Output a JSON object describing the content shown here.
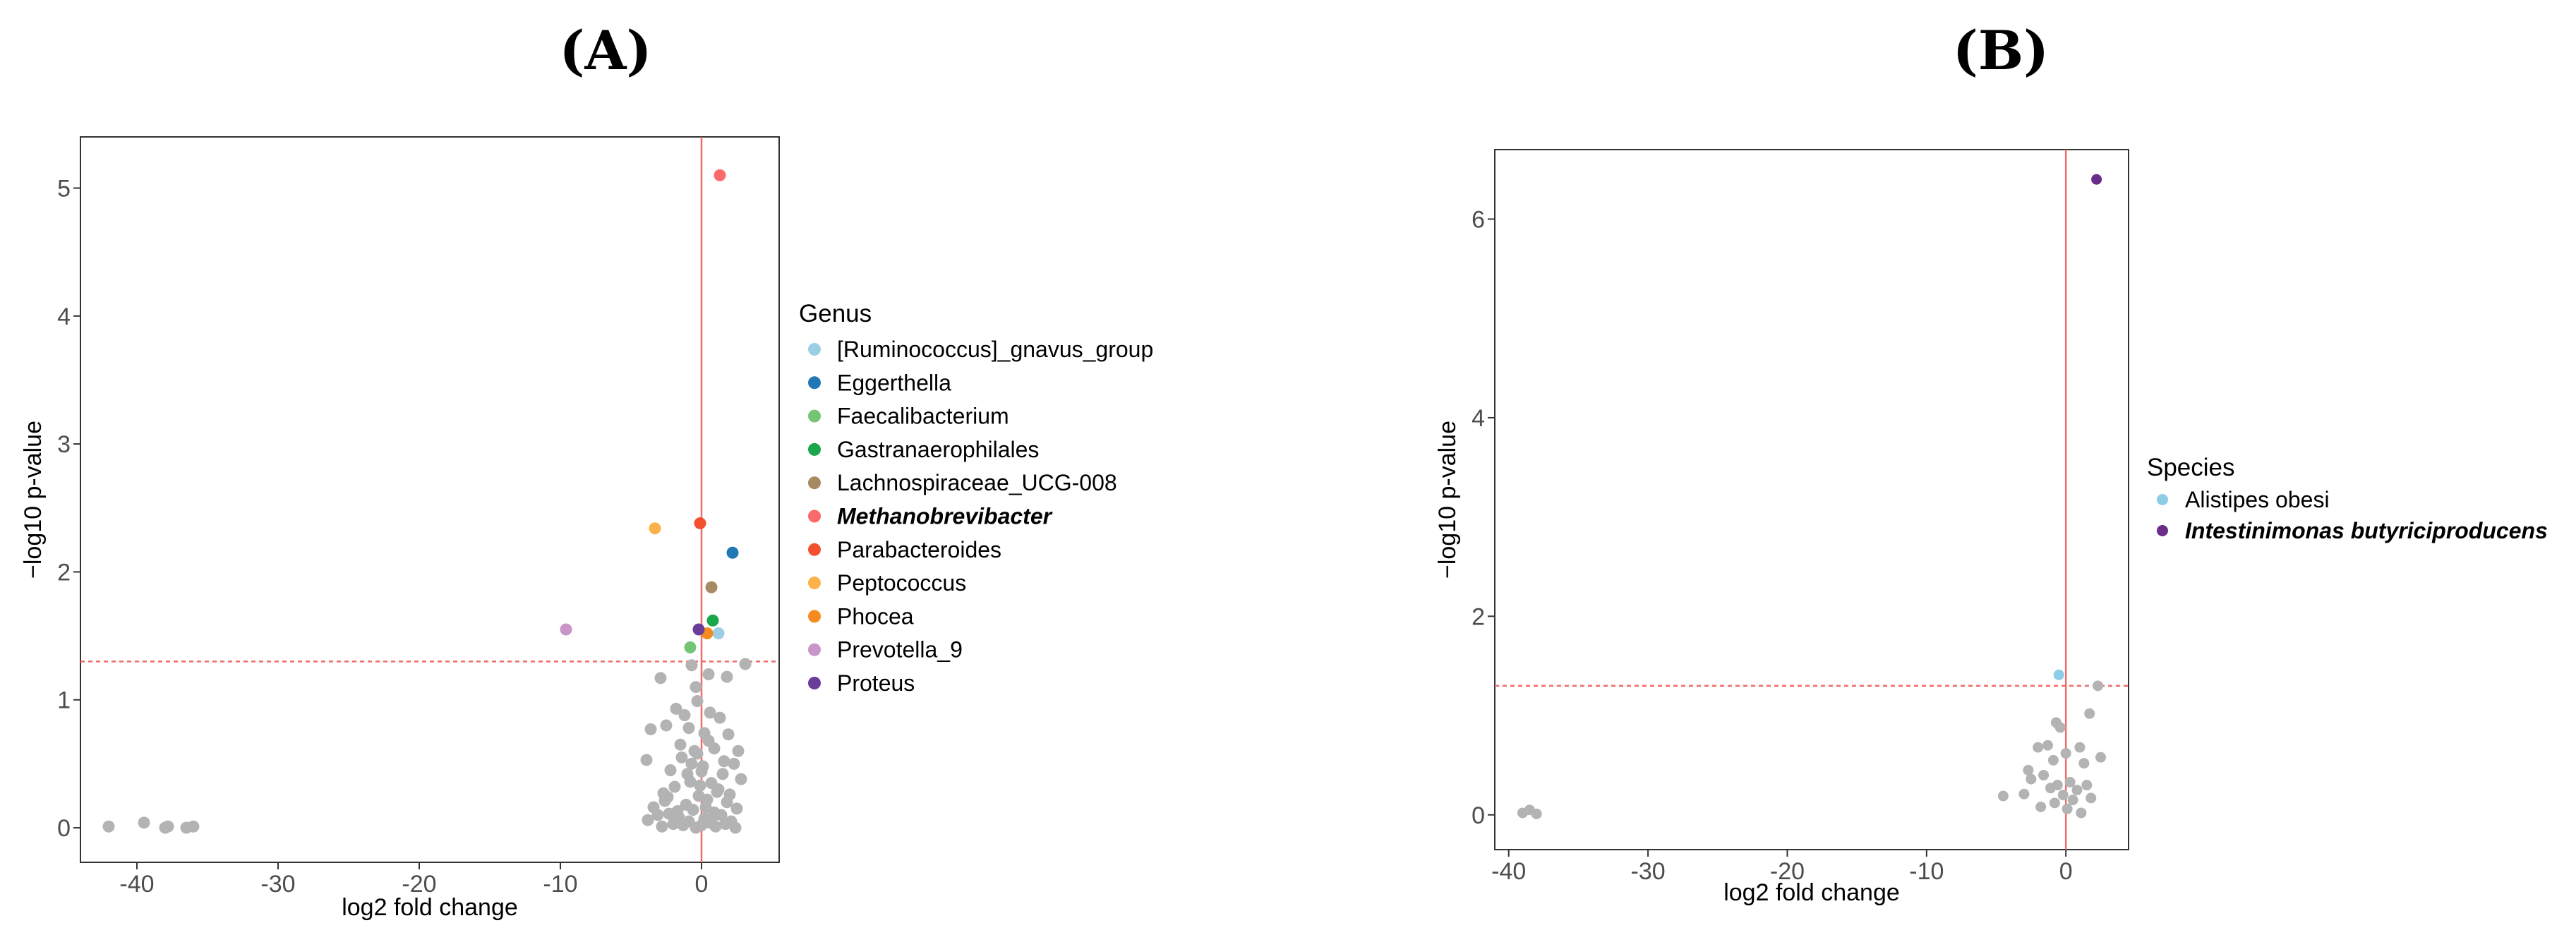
{
  "colors": {
    "nonsignificant": "#b3b3b3",
    "threshold": "#f26a6a",
    "frame": "#333333"
  },
  "chart_data": [
    {
      "panel": "(A)",
      "type": "scatter",
      "xlabel": "log2 fold change",
      "ylabel": "−log10 p-value",
      "xlim": [
        -44,
        5.5
      ],
      "ylim": [
        -0.27,
        5.4
      ],
      "x_ticks": [
        -40,
        -30,
        -20,
        -10,
        0
      ],
      "y_ticks": [
        0,
        1,
        2,
        3,
        4,
        5
      ],
      "grid": false,
      "vline_x": 0,
      "hline_y": 1.3,
      "legend_title": "Genus",
      "legend_position": "right",
      "series": [
        {
          "name": "[Ruminococcus]_gnavus_group",
          "color": "#9ccfe6",
          "emphasis": false,
          "points": [
            [
              1.2,
              1.52
            ]
          ]
        },
        {
          "name": "Eggerthella",
          "color": "#1f78b4",
          "emphasis": false,
          "points": [
            [
              2.2,
              2.15
            ]
          ]
        },
        {
          "name": "Faecalibacterium",
          "color": "#74c476",
          "emphasis": false,
          "points": [
            [
              -0.8,
              1.41
            ]
          ]
        },
        {
          "name": "Gastranaerophilales",
          "color": "#1aa64a",
          "emphasis": false,
          "points": [
            [
              0.8,
              1.62
            ]
          ]
        },
        {
          "name": "Lachnospiraceae_UCG-008",
          "color": "#a88a62",
          "emphasis": false,
          "points": [
            [
              0.7,
              1.88
            ]
          ]
        },
        {
          "name": "Methanobrevibacter",
          "color": "#fb6a6a",
          "emphasis": true,
          "points": [
            [
              1.3,
              5.1
            ]
          ]
        },
        {
          "name": "Parabacteroides",
          "color": "#f2502f",
          "emphasis": false,
          "points": [
            [
              -0.1,
              2.38
            ]
          ]
        },
        {
          "name": "Peptococcus",
          "color": "#fdb249",
          "emphasis": false,
          "points": [
            [
              -3.3,
              2.34
            ]
          ]
        },
        {
          "name": "Phocea",
          "color": "#f58b1f",
          "emphasis": false,
          "points": [
            [
              0.4,
              1.52
            ]
          ]
        },
        {
          "name": "Prevotella_9",
          "color": "#c994c7",
          "emphasis": false,
          "points": [
            [
              -9.6,
              1.55
            ]
          ]
        },
        {
          "name": "Proteus",
          "color": "#6a3d9a",
          "emphasis": false,
          "points": [
            [
              -0.2,
              1.55
            ]
          ]
        }
      ],
      "nonsignificant_points": [
        [
          -42,
          0.01
        ],
        [
          -39.5,
          0.04
        ],
        [
          -38,
          0.0
        ],
        [
          -37.8,
          0.01
        ],
        [
          -36.5,
          0.0
        ],
        [
          -36,
          0.01
        ],
        [
          3.1,
          1.28
        ],
        [
          1.8,
          1.18
        ],
        [
          -2.9,
          1.17
        ],
        [
          -0.4,
          1.1
        ],
        [
          -0.7,
          1.27
        ],
        [
          0.5,
          1.2
        ],
        [
          -1.8,
          0.93
        ],
        [
          -1.2,
          0.88
        ],
        [
          -0.3,
          0.99
        ],
        [
          0.6,
          0.9
        ],
        [
          1.3,
          0.86
        ],
        [
          -2.5,
          0.8
        ],
        [
          -0.9,
          0.78
        ],
        [
          0.2,
          0.74
        ],
        [
          1.9,
          0.73
        ],
        [
          -3.6,
          0.77
        ],
        [
          -0.5,
          0.6
        ],
        [
          0.9,
          0.62
        ],
        [
          2.3,
          0.5
        ],
        [
          -1.4,
          0.55
        ],
        [
          -2.2,
          0.45
        ],
        [
          0.1,
          0.48
        ],
        [
          1.5,
          0.42
        ],
        [
          -3.9,
          0.53
        ],
        [
          -0.8,
          0.36
        ],
        [
          0.7,
          0.35
        ],
        [
          2.8,
          0.38
        ],
        [
          -1.9,
          0.32
        ],
        [
          1.1,
          0.28
        ],
        [
          -2.7,
          0.27
        ],
        [
          -0.2,
          0.25
        ],
        [
          0.4,
          0.22
        ],
        [
          1.8,
          0.2
        ],
        [
          -1.1,
          0.18
        ],
        [
          -3.4,
          0.16
        ],
        [
          2.5,
          0.15
        ],
        [
          -0.6,
          0.14
        ],
        [
          0.9,
          0.12
        ],
        [
          -2.3,
          0.11
        ],
        [
          1.4,
          0.1
        ],
        [
          -1.6,
          0.08
        ],
        [
          0.2,
          0.07
        ],
        [
          -3.8,
          0.06
        ],
        [
          2.1,
          0.05
        ],
        [
          -0.9,
          0.05
        ],
        [
          0.6,
          0.04
        ],
        [
          -2.0,
          0.03
        ],
        [
          1.7,
          0.03
        ],
        [
          -1.3,
          0.02
        ],
        [
          0.0,
          0.02
        ],
        [
          -2.8,
          0.01
        ],
        [
          1.0,
          0.01
        ],
        [
          -0.4,
          0.0
        ],
        [
          2.4,
          0.0
        ],
        [
          -1.7,
          0.13
        ],
        [
          0.3,
          0.16
        ],
        [
          -2.6,
          0.21
        ],
        [
          1.2,
          0.3
        ],
        [
          -0.1,
          0.33
        ],
        [
          2.0,
          0.26
        ],
        [
          -3.1,
          0.1
        ],
        [
          0.8,
          0.09
        ],
        [
          -1.0,
          0.42
        ],
        [
          1.6,
          0.52
        ],
        [
          -0.3,
          0.58
        ],
        [
          0.5,
          0.68
        ],
        [
          -1.5,
          0.65
        ],
        [
          2.6,
          0.6
        ],
        [
          -2.4,
          0.24
        ],
        [
          0.0,
          0.44
        ],
        [
          -0.7,
          0.5
        ]
      ]
    },
    {
      "panel": "(B)",
      "type": "scatter",
      "xlabel": "log2 fold change",
      "ylabel": "−log10 p-value",
      "xlim": [
        -41,
        4.5
      ],
      "ylim": [
        -0.35,
        6.7
      ],
      "x_ticks": [
        -40,
        -30,
        -20,
        -10,
        0
      ],
      "y_ticks": [
        0,
        2,
        4,
        6
      ],
      "grid": false,
      "vline_x": 0,
      "hline_y": 1.3,
      "legend_title": "Species",
      "legend_position": "right",
      "series": [
        {
          "name": "Alistipes obesi",
          "color": "#8ecde6",
          "emphasis": false,
          "points": [
            [
              -0.5,
              1.41
            ]
          ]
        },
        {
          "name": "Intestinimonas butyriciproducens",
          "color": "#6a2d8a",
          "emphasis": true,
          "points": [
            [
              2.2,
              6.4
            ]
          ]
        }
      ],
      "nonsignificant_points": [
        [
          -39,
          0.02
        ],
        [
          -38.5,
          0.05
        ],
        [
          -38,
          0.01
        ],
        [
          2.3,
          1.3
        ],
        [
          1.7,
          1.02
        ],
        [
          -0.7,
          0.93
        ],
        [
          -0.4,
          0.88
        ],
        [
          -1.3,
          0.7
        ],
        [
          -2.0,
          0.68
        ],
        [
          1.0,
          0.68
        ],
        [
          0.0,
          0.62
        ],
        [
          2.5,
          0.58
        ],
        [
          -0.9,
          0.55
        ],
        [
          1.3,
          0.52
        ],
        [
          -2.7,
          0.45
        ],
        [
          -1.6,
          0.4
        ],
        [
          -2.5,
          0.36
        ],
        [
          0.3,
          0.33
        ],
        [
          -0.6,
          0.3
        ],
        [
          1.5,
          0.3
        ],
        [
          -1.1,
          0.27
        ],
        [
          0.8,
          0.25
        ],
        [
          -3.0,
          0.21
        ],
        [
          -4.5,
          0.19
        ],
        [
          -0.2,
          0.2
        ],
        [
          1.8,
          0.17
        ],
        [
          0.5,
          0.15
        ],
        [
          -0.8,
          0.12
        ],
        [
          -1.8,
          0.08
        ],
        [
          0.1,
          0.06
        ],
        [
          1.1,
          0.02
        ]
      ]
    }
  ]
}
